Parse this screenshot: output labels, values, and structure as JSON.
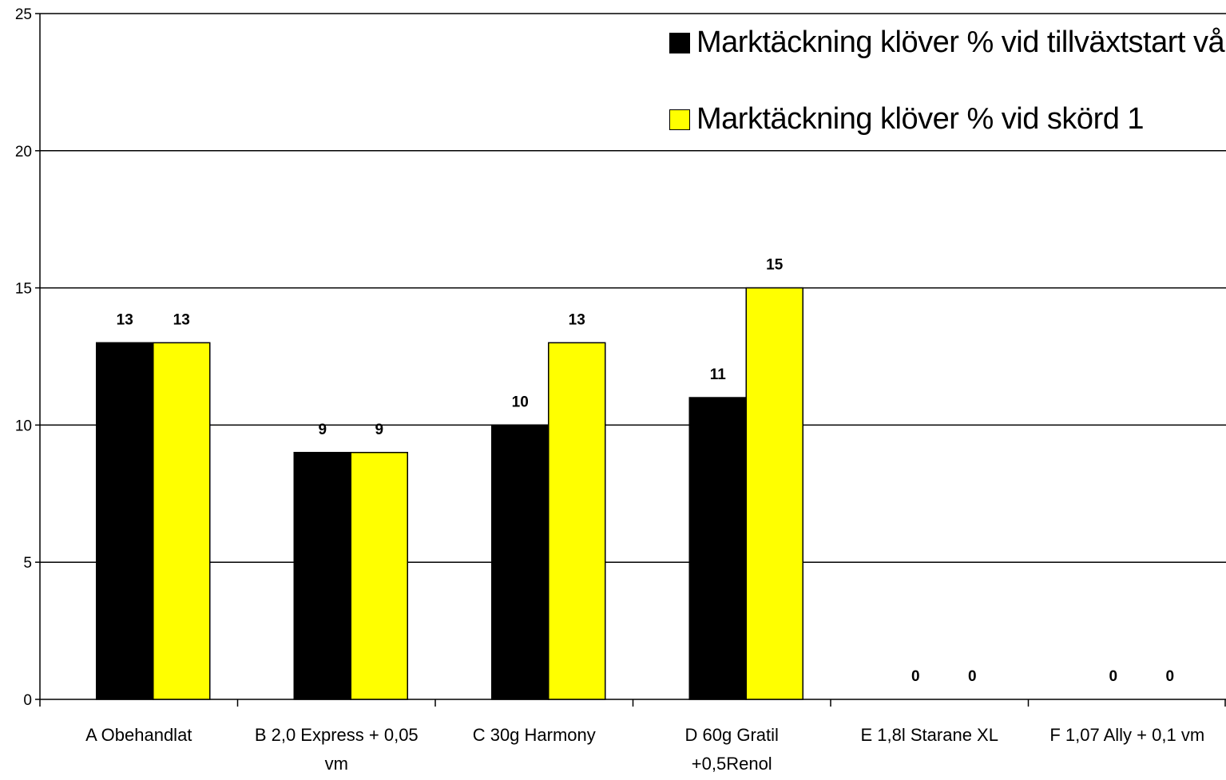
{
  "chart_data": {
    "type": "bar",
    "title": "",
    "xlabel": "",
    "ylabel": "",
    "ylim": [
      0,
      25
    ],
    "yticks": [
      0,
      5,
      10,
      15,
      20,
      25
    ],
    "grid": true,
    "legend_position": "top-right",
    "categories": [
      [
        "A Obehandlat"
      ],
      [
        "B 2,0 Express + 0,05",
        "vm"
      ],
      [
        "C 30g Harmony"
      ],
      [
        "D 60g Gratil",
        "+0,5Renol"
      ],
      [
        "E 1,8l Starane XL"
      ],
      [
        "F 1,07 Ally + 0,1 vm"
      ]
    ],
    "series": [
      {
        "name": "Marktäckning klöver % vid tillväxtstart vår",
        "color": "#000000",
        "values": [
          13,
          9,
          10,
          11,
          0,
          0
        ]
      },
      {
        "name": "Marktäckning klöver % vid skörd 1",
        "color": "#ffff00",
        "values": [
          13,
          9,
          13,
          15,
          0,
          0
        ]
      }
    ]
  }
}
